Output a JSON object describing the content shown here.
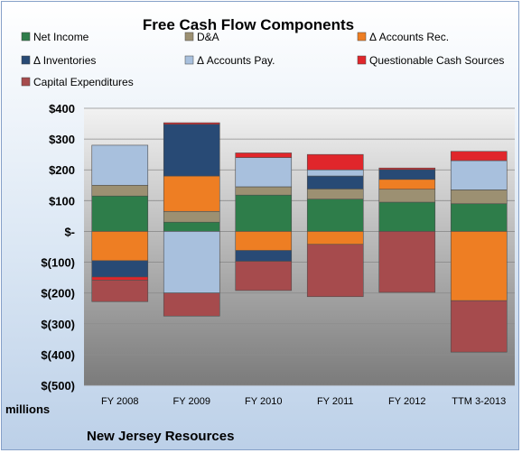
{
  "chart_data": {
    "type": "bar",
    "stacked": true,
    "title": "Free Cash Flow Components",
    "units_label": "millions",
    "company": "New Jersey Resources",
    "categories": [
      "FY 2008",
      "FY 2009",
      "FY 2010",
      "FY 2011",
      "FY 2012",
      "TTM 3-2013"
    ],
    "ylim": [
      -500,
      400
    ],
    "yticks": [
      400,
      300,
      200,
      100,
      0,
      -100,
      -200,
      -300,
      -400,
      -500
    ],
    "ytick_labels": [
      "$400",
      "$300",
      "$200",
      "$100",
      "$-",
      "$(100)",
      "$(200)",
      "$(300)",
      "$(400)",
      "$(500)"
    ],
    "legend_position": "top",
    "series": [
      {
        "name": "Net Income",
        "color": "#2e7d4a",
        "values": [
          115,
          30,
          118,
          105,
          95,
          90
        ]
      },
      {
        "name": "D&A",
        "color": "#9c9072",
        "values": [
          35,
          35,
          27,
          33,
          42,
          45
        ]
      },
      {
        "name": "Δ Accounts Rec.",
        "color": "#ee7e23",
        "values": [
          -95,
          115,
          -62,
          -42,
          32,
          -225
        ]
      },
      {
        "name": "Δ Inventories",
        "color": "#284a75",
        "values": [
          -53,
          168,
          -35,
          42,
          32,
          0
        ]
      },
      {
        "name": "Δ Accounts Pay.",
        "color": "#a8c0dd",
        "values": [
          130,
          -200,
          95,
          20,
          0,
          95
        ]
      },
      {
        "name": "Questionable Cash Sources",
        "color": "#e0262b",
        "values": [
          -10,
          5,
          15,
          50,
          5,
          30
        ]
      },
      {
        "name": "Capital Expenditures",
        "color": "#a64b4d",
        "values": [
          -70,
          -75,
          -95,
          -170,
          -198,
          -167
        ]
      }
    ]
  }
}
